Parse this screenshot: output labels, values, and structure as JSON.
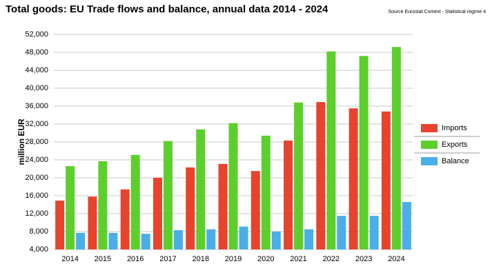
{
  "chart_data": {
    "type": "bar",
    "title": "Total goods: EU Trade flows and balance, annual data 2014 - 2024",
    "source": "Source Eurostat Comext  - Statistical regime 4",
    "y_label": "million EUR",
    "categories": [
      "2014",
      "2015",
      "2016",
      "2017",
      "2018",
      "2019",
      "2020",
      "2021",
      "2022",
      "2023",
      "2024"
    ],
    "series": [
      {
        "name": "Imports",
        "color": "#e8432c",
        "values": [
          14900,
          15800,
          17400,
          20000,
          22300,
          23100,
          21500,
          28300,
          36900,
          35500,
          34800
        ]
      },
      {
        "name": "Exports",
        "color": "#5ccf2c",
        "values": [
          22600,
          23700,
          25100,
          28200,
          30800,
          32200,
          29400,
          36800,
          48200,
          47200,
          49200
        ]
      },
      {
        "name": "Balance",
        "color": "#4aaee9",
        "values": [
          7700,
          7700,
          7500,
          8300,
          8500,
          9100,
          8000,
          8500,
          11500,
          11500,
          14600
        ]
      }
    ],
    "ylim": [
      4000,
      52000
    ],
    "yticks": [
      {
        "value": 4000,
        "label": "4,000"
      },
      {
        "value": 8000,
        "label": "8,000"
      },
      {
        "value": 12000,
        "label": "12,000"
      },
      {
        "value": 16000,
        "label": "16,000"
      },
      {
        "value": 20000,
        "label": "20,000"
      },
      {
        "value": 24000,
        "label": "24,000"
      },
      {
        "value": 28000,
        "label": "28,000"
      },
      {
        "value": 32000,
        "label": "32,000"
      },
      {
        "value": 36000,
        "label": "36,000"
      },
      {
        "value": 40000,
        "label": "40,000"
      },
      {
        "value": 44000,
        "label": "44,000"
      },
      {
        "value": 48000,
        "label": "48,000"
      },
      {
        "value": 52000,
        "label": "52,000"
      }
    ],
    "grid": true
  }
}
